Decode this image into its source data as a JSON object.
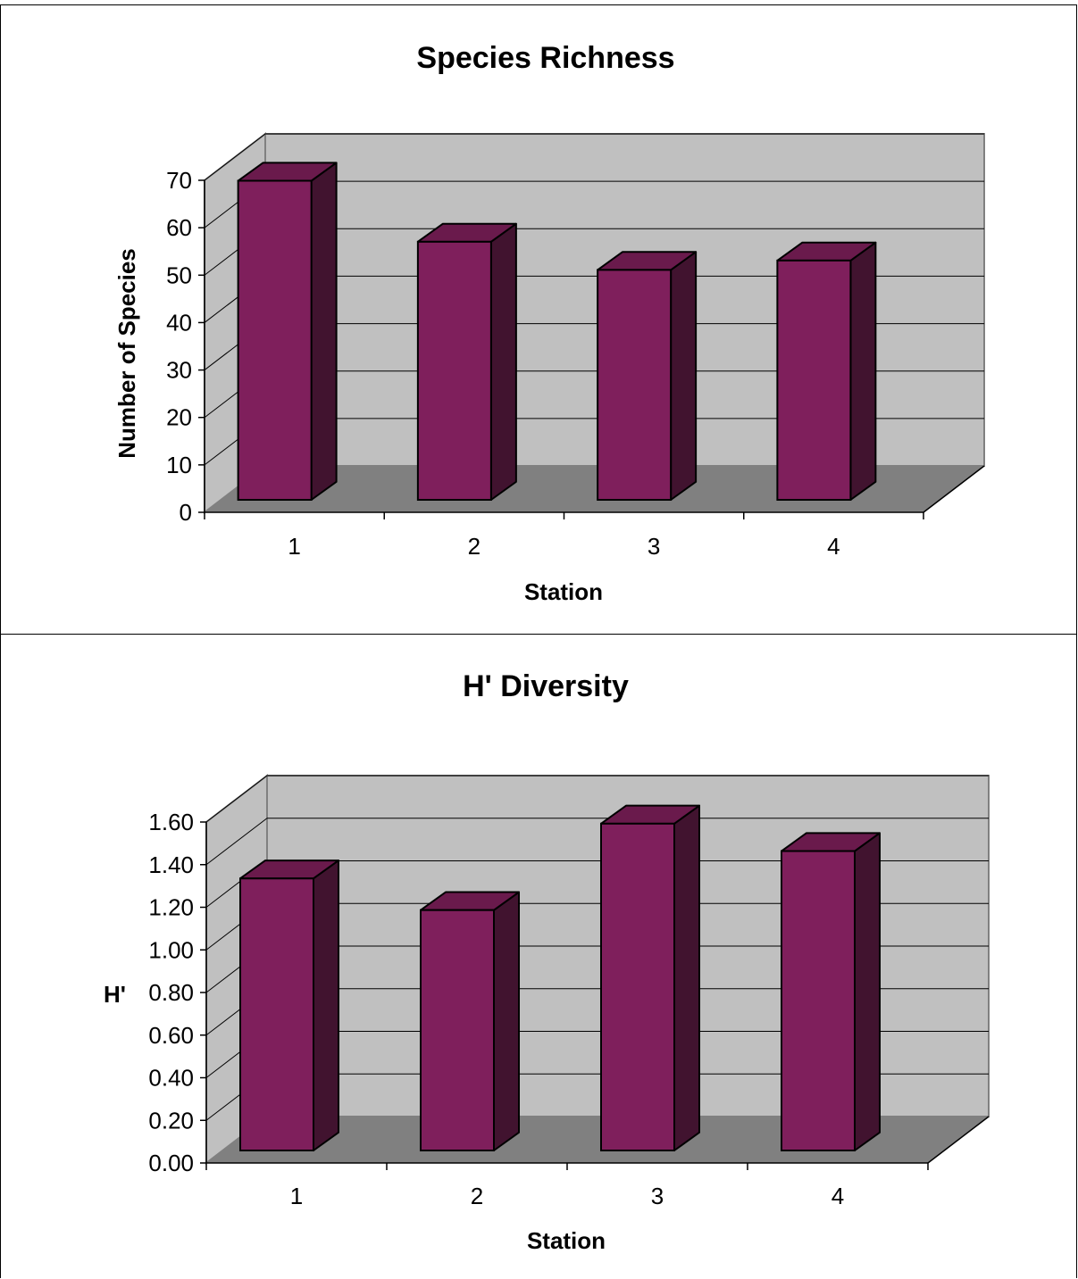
{
  "colors": {
    "bar_front": "#7f1f5c",
    "bar_top": "#6a1a4c",
    "bar_side": "#41132f",
    "back_wall": "#c0c0c0",
    "side_wall": "#c0c0c0",
    "floor": "#808080"
  },
  "chart_data": [
    {
      "type": "bar",
      "title": "Species Richness",
      "xlabel": "Station",
      "ylabel": "Number of Species",
      "categories": [
        "1",
        "2",
        "3",
        "4"
      ],
      "values": [
        68,
        55,
        49,
        51
      ],
      "ylim": [
        0,
        70
      ],
      "yticks": [
        "0",
        "10",
        "20",
        "30",
        "40",
        "50",
        "60",
        "70"
      ],
      "grid": true,
      "legend": "none",
      "style": "3d"
    },
    {
      "type": "bar",
      "title": "H' Diversity",
      "xlabel": "Station",
      "ylabel": "H'",
      "categories": [
        "1",
        "2",
        "3",
        "4"
      ],
      "values": [
        1.29,
        1.14,
        1.55,
        1.42
      ],
      "ylim": [
        0,
        1.6
      ],
      "yticks": [
        "0.00",
        "0.20",
        "0.40",
        "0.60",
        "0.80",
        "1.00",
        "1.20",
        "1.40",
        "1.60"
      ],
      "grid": true,
      "legend": "none",
      "style": "3d"
    }
  ]
}
